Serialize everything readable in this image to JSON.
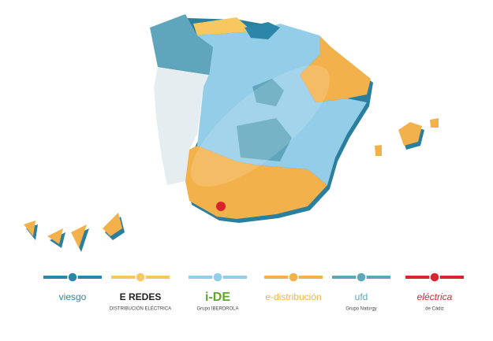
{
  "legend": [
    {
      "label": "viesgo",
      "color": "#2b86a8"
    },
    {
      "label": "E REDES",
      "sub": "DISTRIBUCIÓN ELÉCTRICA",
      "color": "#f6c85f"
    },
    {
      "label": "i-DE",
      "sub": "Grupo IBERDROLA",
      "color": "#93cde8"
    },
    {
      "label": "e-distribución",
      "color": "#f3b14b"
    },
    {
      "label": "ufd",
      "sub": "Grupo Naturgy",
      "color": "#5fa6bd"
    },
    {
      "label": "eléctrica",
      "sub": "de Cádiz",
      "color": "#d9232e"
    }
  ]
}
